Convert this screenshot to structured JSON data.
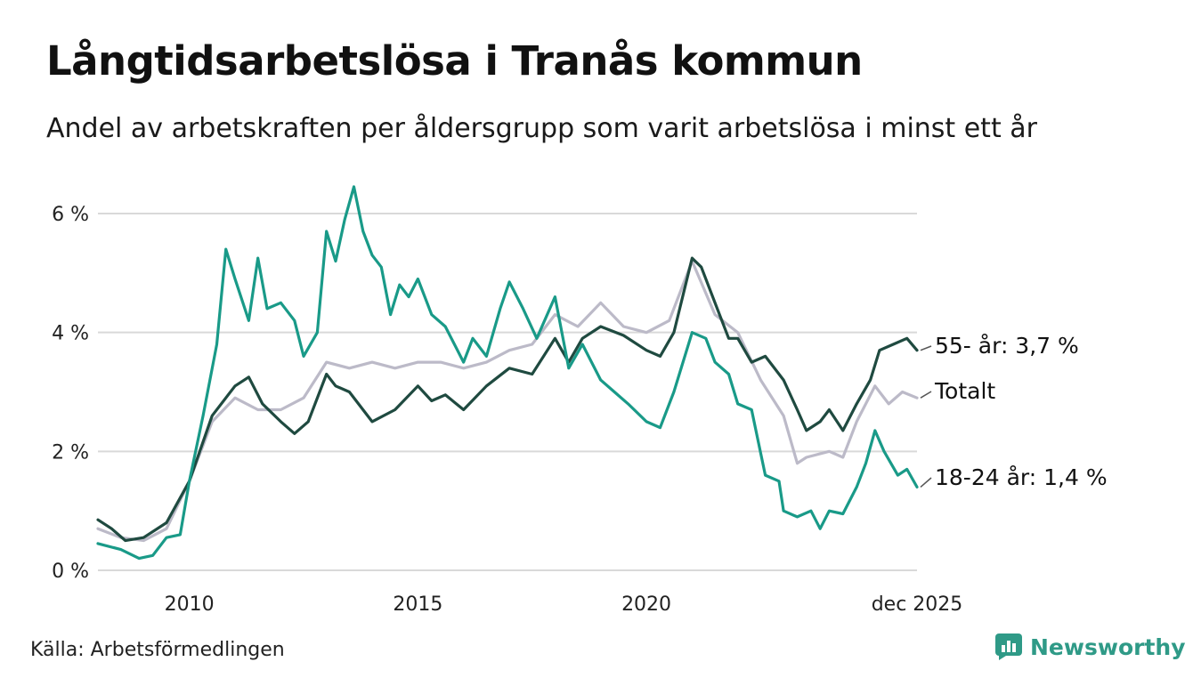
{
  "header": {
    "title": "Långtidsarbetslösa i Tranås kommun",
    "subtitle": "Andel av arbetskraften per åldersgrupp som varit arbetslösa i minst ett år"
  },
  "footer": {
    "source": "Källa: Arbetsförmedlingen",
    "brand": "Newsworthy"
  },
  "colors": {
    "youth": "#199a88",
    "older": "#1f4a40",
    "total": "#bcbac8",
    "grid": "#d9d9d9",
    "brand": "#2f9a87"
  },
  "chart_data": {
    "type": "line",
    "title": "Långtidsarbetslösa i Tranås kommun",
    "subtitle": "Andel av arbetskraften per åldersgrupp som varit arbetslösa i minst ett år",
    "xlabel": "",
    "ylabel": "",
    "xlim": [
      2008.0,
      2025.92
    ],
    "ylim": [
      0,
      6
    ],
    "grid": true,
    "y_ticks": [
      {
        "value": 0,
        "label": "0 %"
      },
      {
        "value": 2,
        "label": "2 %"
      },
      {
        "value": 4,
        "label": "4 %"
      },
      {
        "value": 6,
        "label": "6 %"
      }
    ],
    "x_ticks": [
      {
        "value": 2010,
        "label": "2010"
      },
      {
        "value": 2015,
        "label": "2015"
      },
      {
        "value": 2020,
        "label": "2020"
      },
      {
        "value": 2025.92,
        "label": "dec 2025"
      }
    ],
    "series": [
      {
        "name": "Totalt",
        "key": "total",
        "end_label": "Totalt",
        "points": [
          [
            2008.0,
            0.7
          ],
          [
            2008.5,
            0.55
          ],
          [
            2009.0,
            0.5
          ],
          [
            2009.5,
            0.7
          ],
          [
            2010.0,
            1.5
          ],
          [
            2010.5,
            2.5
          ],
          [
            2011.0,
            2.9
          ],
          [
            2011.5,
            2.7
          ],
          [
            2012.0,
            2.7
          ],
          [
            2012.5,
            2.9
          ],
          [
            2013.0,
            3.5
          ],
          [
            2013.5,
            3.4
          ],
          [
            2014.0,
            3.5
          ],
          [
            2014.5,
            3.4
          ],
          [
            2015.0,
            3.5
          ],
          [
            2015.5,
            3.5
          ],
          [
            2016.0,
            3.4
          ],
          [
            2016.5,
            3.5
          ],
          [
            2017.0,
            3.7
          ],
          [
            2017.5,
            3.8
          ],
          [
            2018.0,
            4.3
          ],
          [
            2018.5,
            4.1
          ],
          [
            2019.0,
            4.5
          ],
          [
            2019.5,
            4.1
          ],
          [
            2020.0,
            4.0
          ],
          [
            2020.5,
            4.2
          ],
          [
            2021.0,
            5.2
          ],
          [
            2021.5,
            4.3
          ],
          [
            2022.0,
            4.0
          ],
          [
            2022.5,
            3.2
          ],
          [
            2023.0,
            2.6
          ],
          [
            2023.3,
            1.8
          ],
          [
            2023.5,
            1.9
          ],
          [
            2024.0,
            2.0
          ],
          [
            2024.3,
            1.9
          ],
          [
            2024.6,
            2.5
          ],
          [
            2025.0,
            3.1
          ],
          [
            2025.3,
            2.8
          ],
          [
            2025.6,
            3.0
          ],
          [
            2025.92,
            2.9
          ]
        ]
      },
      {
        "name": "55- år",
        "key": "older",
        "end_label": "55- år: 3,7 %",
        "points": [
          [
            2008.0,
            0.85
          ],
          [
            2008.3,
            0.7
          ],
          [
            2008.6,
            0.5
          ],
          [
            2009.0,
            0.55
          ],
          [
            2009.5,
            0.8
          ],
          [
            2010.0,
            1.5
          ],
          [
            2010.5,
            2.6
          ],
          [
            2011.0,
            3.1
          ],
          [
            2011.3,
            3.25
          ],
          [
            2011.6,
            2.8
          ],
          [
            2012.0,
            2.5
          ],
          [
            2012.3,
            2.3
          ],
          [
            2012.6,
            2.5
          ],
          [
            2013.0,
            3.3
          ],
          [
            2013.2,
            3.1
          ],
          [
            2013.5,
            3.0
          ],
          [
            2014.0,
            2.5
          ],
          [
            2014.5,
            2.7
          ],
          [
            2015.0,
            3.1
          ],
          [
            2015.3,
            2.85
          ],
          [
            2015.6,
            2.95
          ],
          [
            2016.0,
            2.7
          ],
          [
            2016.5,
            3.1
          ],
          [
            2017.0,
            3.4
          ],
          [
            2017.5,
            3.3
          ],
          [
            2018.0,
            3.9
          ],
          [
            2018.3,
            3.5
          ],
          [
            2018.6,
            3.9
          ],
          [
            2019.0,
            4.1
          ],
          [
            2019.5,
            3.95
          ],
          [
            2020.0,
            3.7
          ],
          [
            2020.3,
            3.6
          ],
          [
            2020.6,
            4.0
          ],
          [
            2021.0,
            5.25
          ],
          [
            2021.2,
            5.1
          ],
          [
            2021.5,
            4.5
          ],
          [
            2021.8,
            3.9
          ],
          [
            2022.0,
            3.9
          ],
          [
            2022.3,
            3.5
          ],
          [
            2022.6,
            3.6
          ],
          [
            2023.0,
            3.2
          ],
          [
            2023.3,
            2.7
          ],
          [
            2023.5,
            2.35
          ],
          [
            2023.8,
            2.5
          ],
          [
            2024.0,
            2.7
          ],
          [
            2024.3,
            2.35
          ],
          [
            2024.6,
            2.8
          ],
          [
            2024.9,
            3.2
          ],
          [
            2025.1,
            3.7
          ],
          [
            2025.4,
            3.8
          ],
          [
            2025.7,
            3.9
          ],
          [
            2025.92,
            3.7
          ]
        ]
      },
      {
        "name": "18-24 år",
        "key": "youth",
        "end_label": "18-24 år: 1,4 %",
        "points": [
          [
            2008.0,
            0.45
          ],
          [
            2008.5,
            0.35
          ],
          [
            2008.9,
            0.2
          ],
          [
            2009.2,
            0.25
          ],
          [
            2009.5,
            0.55
          ],
          [
            2009.8,
            0.6
          ],
          [
            2010.0,
            1.5
          ],
          [
            2010.3,
            2.6
          ],
          [
            2010.6,
            3.8
          ],
          [
            2010.8,
            5.4
          ],
          [
            2011.0,
            4.9
          ],
          [
            2011.3,
            4.2
          ],
          [
            2011.5,
            5.25
          ],
          [
            2011.7,
            4.4
          ],
          [
            2012.0,
            4.5
          ],
          [
            2012.3,
            4.2
          ],
          [
            2012.5,
            3.6
          ],
          [
            2012.8,
            4.0
          ],
          [
            2013.0,
            5.7
          ],
          [
            2013.2,
            5.2
          ],
          [
            2013.4,
            5.9
          ],
          [
            2013.6,
            6.45
          ],
          [
            2013.8,
            5.7
          ],
          [
            2014.0,
            5.3
          ],
          [
            2014.2,
            5.1
          ],
          [
            2014.4,
            4.3
          ],
          [
            2014.6,
            4.8
          ],
          [
            2014.8,
            4.6
          ],
          [
            2015.0,
            4.9
          ],
          [
            2015.3,
            4.3
          ],
          [
            2015.6,
            4.1
          ],
          [
            2016.0,
            3.5
          ],
          [
            2016.2,
            3.9
          ],
          [
            2016.5,
            3.6
          ],
          [
            2016.8,
            4.4
          ],
          [
            2017.0,
            4.85
          ],
          [
            2017.3,
            4.4
          ],
          [
            2017.6,
            3.9
          ],
          [
            2018.0,
            4.6
          ],
          [
            2018.3,
            3.4
          ],
          [
            2018.6,
            3.8
          ],
          [
            2019.0,
            3.2
          ],
          [
            2019.3,
            3.0
          ],
          [
            2019.6,
            2.8
          ],
          [
            2020.0,
            2.5
          ],
          [
            2020.3,
            2.4
          ],
          [
            2020.6,
            3.0
          ],
          [
            2021.0,
            4.0
          ],
          [
            2021.3,
            3.9
          ],
          [
            2021.5,
            3.5
          ],
          [
            2021.8,
            3.3
          ],
          [
            2022.0,
            2.8
          ],
          [
            2022.3,
            2.7
          ],
          [
            2022.6,
            1.6
          ],
          [
            2022.9,
            1.5
          ],
          [
            2023.0,
            1.0
          ],
          [
            2023.3,
            0.9
          ],
          [
            2023.6,
            1.0
          ],
          [
            2023.8,
            0.7
          ],
          [
            2024.0,
            1.0
          ],
          [
            2024.3,
            0.95
          ],
          [
            2024.6,
            1.4
          ],
          [
            2024.8,
            1.8
          ],
          [
            2025.0,
            2.35
          ],
          [
            2025.2,
            2.0
          ],
          [
            2025.5,
            1.6
          ],
          [
            2025.7,
            1.7
          ],
          [
            2025.92,
            1.4
          ]
        ]
      }
    ]
  }
}
